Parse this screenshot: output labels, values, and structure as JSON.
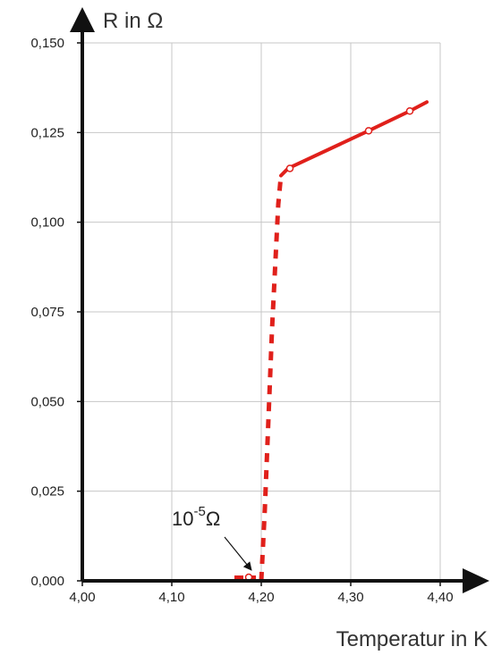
{
  "chart_data": {
    "type": "line",
    "title": "",
    "xlabel": "Temperatur in K",
    "ylabel": "R in Ω",
    "xlim": [
      4.0,
      4.45
    ],
    "ylim": [
      0.0,
      0.15
    ],
    "x_ticks": [
      "4,00",
      "4,10",
      "4,20",
      "4,30",
      "4,40"
    ],
    "x_tick_values": [
      4.0,
      4.1,
      4.2,
      4.3,
      4.4
    ],
    "y_ticks": [
      "0,000",
      "0,025",
      "0,050",
      "0,075",
      "0,100",
      "0,125",
      "0,150"
    ],
    "y_tick_values": [
      0.0,
      0.025,
      0.05,
      0.075,
      0.1,
      0.125,
      0.15
    ],
    "grid": true,
    "series": [
      {
        "name": "",
        "color": "#e0201b",
        "normal_state": {
          "x": [
            4.222,
            4.23,
            4.32,
            4.366,
            4.385
          ],
          "y": [
            0.113,
            0.115,
            0.1255,
            0.131,
            0.1335
          ]
        },
        "transition": {
          "x": [
            4.2,
            4.204,
            4.208,
            4.212,
            4.216,
            4.219,
            4.222
          ],
          "y": [
            0.0,
            0.02,
            0.045,
            0.07,
            0.09,
            0.105,
            0.113
          ]
        },
        "superconducting": {
          "x": [
            4.17,
            4.2
          ],
          "y": [
            0.001,
            0.001
          ]
        },
        "markers": [
          {
            "x": 4.232,
            "y": 0.115
          },
          {
            "x": 4.32,
            "y": 0.1255
          },
          {
            "x": 4.366,
            "y": 0.131
          },
          {
            "x": 4.186,
            "y": 0.001
          }
        ]
      }
    ],
    "annotation": {
      "base": "10",
      "exponent": "-5",
      "unit": "Ω",
      "x": 4.19,
      "y": 0.0015
    }
  }
}
